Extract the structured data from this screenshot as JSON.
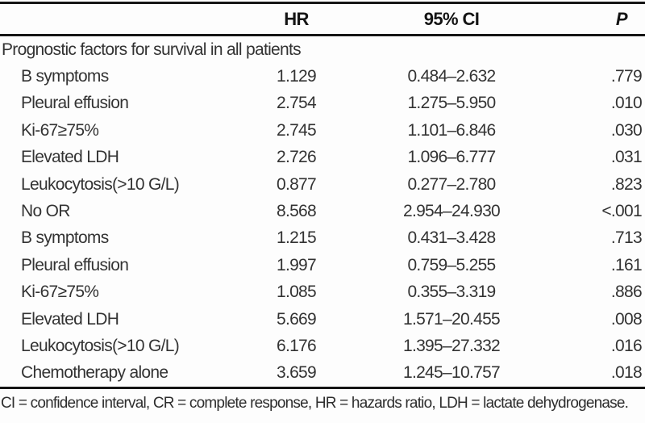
{
  "table": {
    "columns": {
      "label": "",
      "hr": "HR",
      "ci": "95% CI",
      "p": "P"
    },
    "section": "Prognostic factors for survival in all patients",
    "rows": [
      {
        "label": "B symptoms",
        "hr": "1.129",
        "ci": "0.484–2.632",
        "p": ".779"
      },
      {
        "label": "Pleural effusion",
        "hr": "2.754",
        "ci": "1.275–5.950",
        "p": ".010"
      },
      {
        "label": "Ki-67≥75%",
        "hr": "2.745",
        "ci": "1.101–6.846",
        "p": ".030"
      },
      {
        "label": "Elevated LDH",
        "hr": "2.726",
        "ci": "1.096–6.777",
        "p": ".031"
      },
      {
        "label": "Leukocytosis(>10 G/L)",
        "hr": "0.877",
        "ci": "0.277–2.780",
        "p": ".823"
      },
      {
        "label": "No OR",
        "hr": "8.568",
        "ci": "2.954–24.930",
        "p": "<.001"
      },
      {
        "label": "B symptoms",
        "hr": "1.215",
        "ci": "0.431–3.428",
        "p": ".713"
      },
      {
        "label": "Pleural effusion",
        "hr": "1.997",
        "ci": "0.759–5.255",
        "p": ".161"
      },
      {
        "label": "Ki-67≥75%",
        "hr": "1.085",
        "ci": "0.355–3.319",
        "p": ".886"
      },
      {
        "label": "Elevated LDH",
        "hr": "5.669",
        "ci": "1.571–20.455",
        "p": ".008"
      },
      {
        "label": "Leukocytosis(>10 G/L)",
        "hr": "6.176",
        "ci": "1.395–27.332",
        "p": ".016"
      },
      {
        "label": "Chemotherapy alone",
        "hr": "3.659",
        "ci": "1.245–10.757",
        "p": ".018"
      }
    ],
    "footnote": "CI = confidence interval, CR = complete response, HR = hazards ratio, LDH = lactate dehydrogenase."
  }
}
